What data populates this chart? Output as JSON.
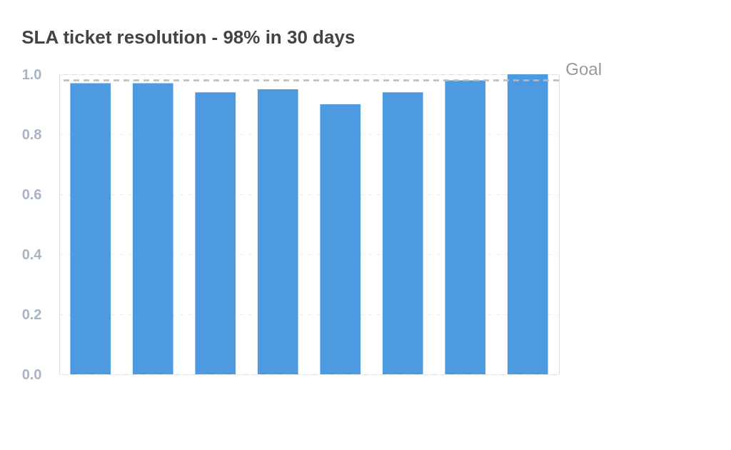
{
  "chart_data": {
    "type": "bar",
    "title": "SLA ticket resolution - 98% in 30 days",
    "categories": [
      null,
      null,
      null,
      null,
      null,
      null,
      null,
      null
    ],
    "values": [
      0.97,
      0.97,
      0.94,
      0.95,
      0.9,
      0.94,
      0.98,
      1.0
    ],
    "color": "#4e9ae0",
    "ylim": [
      0,
      1.0
    ],
    "yticks": [
      {
        "value": 0,
        "label": "0.0"
      },
      {
        "value": 0.2,
        "label": "0.2"
      },
      {
        "value": 0.4,
        "label": "0.4"
      },
      {
        "value": 0.6,
        "label": "0.6"
      },
      {
        "value": 0.8,
        "label": "0.8"
      },
      {
        "value": 1.0,
        "label": "1.0"
      }
    ],
    "grid": "y",
    "ref_lines": [
      {
        "axis": "y",
        "value": 0.98,
        "label": "Goal",
        "color": "#bbbbbb",
        "line_style": "dashed"
      }
    ]
  }
}
